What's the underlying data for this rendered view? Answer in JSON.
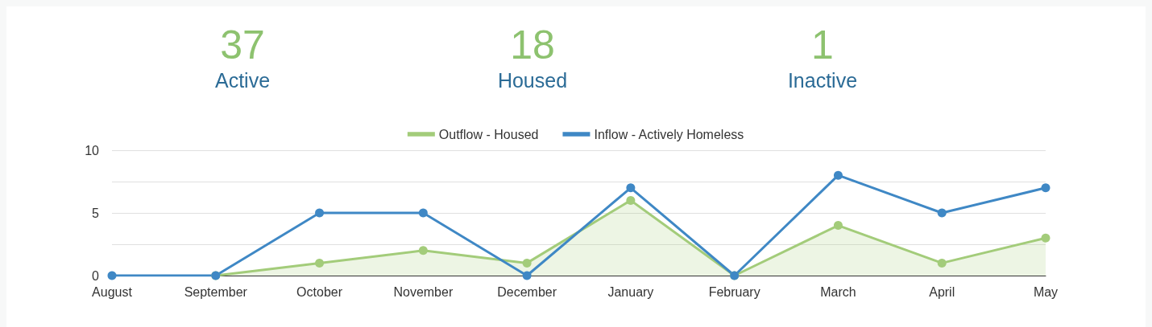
{
  "chart_data": [
    {
      "type": "other",
      "categories": [
        "Active",
        "Housed",
        "Inactive"
      ],
      "values": [
        37,
        18,
        1
      ],
      "data_labels": true,
      "colors": [
        "#8dc26f",
        "#8dc26f",
        "#8dc26f"
      ]
    },
    {
      "type": "line",
      "categories": [
        "August",
        "September",
        "October",
        "November",
        "December",
        "January",
        "February",
        "March",
        "April",
        "May"
      ],
      "series": [
        {
          "name": "Outflow - Housed",
          "type": "area",
          "color": "#a3cc7a",
          "values": [
            null,
            0,
            1,
            2,
            1,
            6,
            0,
            4,
            1,
            3
          ]
        },
        {
          "name": "Inflow - Actively Homeless",
          "color": "#3f88c5",
          "values": [
            0,
            0,
            5,
            5,
            0,
            7,
            0,
            8,
            5,
            7
          ]
        }
      ],
      "ylim": [
        0,
        10
      ],
      "yticks": [
        0,
        {
          "value": 2.5,
          "label": null
        },
        5,
        {
          "value": 7.5,
          "label": null
        },
        10
      ],
      "grid": "y",
      "legend": "top",
      "marker": "circle",
      "line_style": "solid"
    }
  ]
}
